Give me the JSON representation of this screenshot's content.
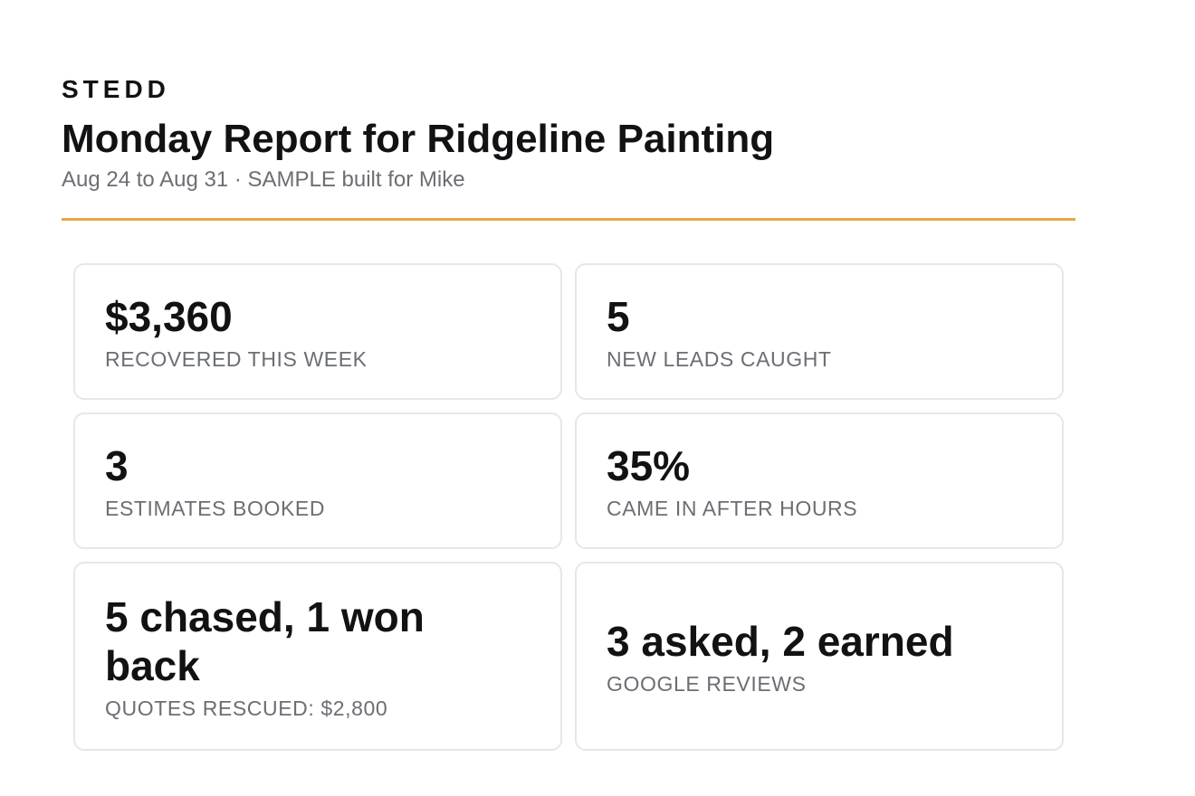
{
  "header": {
    "brand": "STEDD",
    "title": "Monday Report for Ridgeline Painting",
    "subtitle": "Aug 24 to Aug 31 · SAMPLE built for Mike",
    "accent_color": "#e5a93f"
  },
  "stats": [
    {
      "value": "$3,360",
      "label": "RECOVERED THIS WEEK"
    },
    {
      "value": "5",
      "label": "NEW LEADS CAUGHT"
    },
    {
      "value": "3",
      "label": "ESTIMATES BOOKED"
    },
    {
      "value": "35%",
      "label": "CAME IN AFTER HOURS"
    },
    {
      "value": "5 chased, 1 won back",
      "label": "QUOTES RESCUED: $2,800"
    },
    {
      "value": "3 asked, 2 earned",
      "label": "GOOGLE REVIEWS"
    }
  ]
}
